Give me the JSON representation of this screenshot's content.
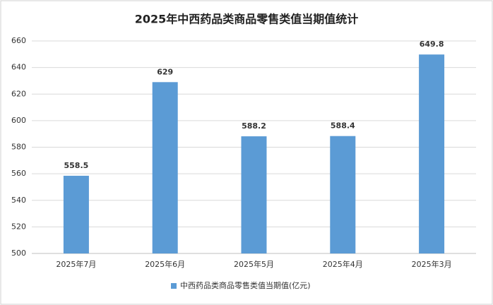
{
  "chart_data": {
    "type": "bar",
    "title": "2025年中西药品类商品零售类值当期值统计",
    "categories": [
      "2025年7月",
      "2025年6月",
      "2025年5月",
      "2025年4月",
      "2025年3月"
    ],
    "series": [
      {
        "name": "中西药品类商品零售类值当期值(亿元)",
        "color": "#5b9bd5",
        "values": [
          558.5,
          629,
          588.2,
          588.4,
          649.8
        ]
      }
    ],
    "ylim": [
      500,
      660
    ],
    "yticks": [
      500,
      520,
      540,
      560,
      580,
      600,
      620,
      640,
      660
    ],
    "grid": true,
    "legend": "bottom"
  }
}
